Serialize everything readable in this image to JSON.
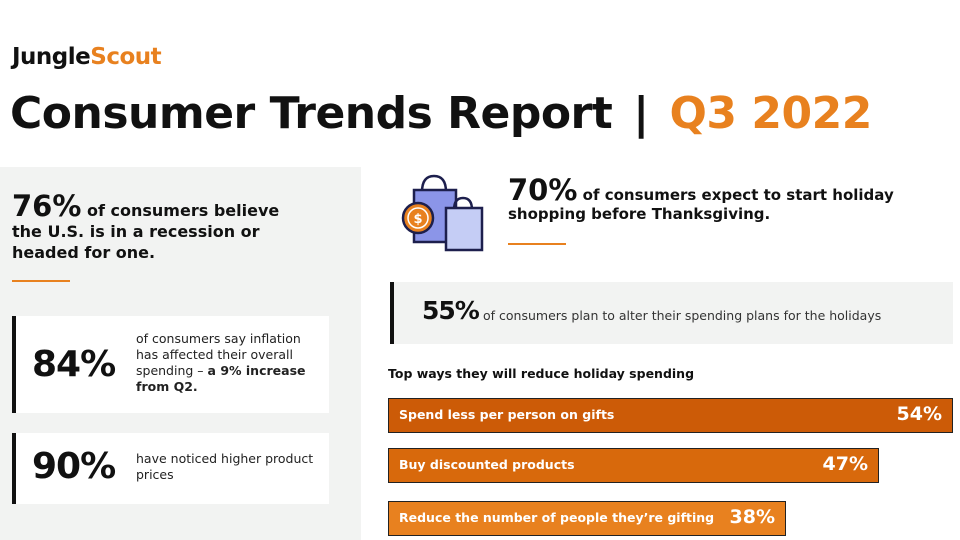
{
  "brand": {
    "part1": "Jungle",
    "part2": "Scout"
  },
  "header": {
    "title_main": "Consumer Trends Report",
    "title_separator": "|",
    "title_period": "Q3 2022"
  },
  "colors": {
    "accent": "#e8811f",
    "dark_orange": "#cc5b07",
    "panel_gray": "#f2f3f2",
    "bag_blue": "#8b95e8"
  },
  "stats": {
    "recession": {
      "percent": "76%",
      "text": "of consumers believe the U.S. is in a recession or headed for one."
    },
    "inflation": {
      "percent": "84%",
      "text": "of consumers say inflation has affected their overall spending – ",
      "highlight": "a 9% increase from Q2."
    },
    "prices": {
      "percent": "90%",
      "text": "have noticed higher product prices"
    },
    "holiday_start": {
      "percent": "70%",
      "text": "of consumers expect to start holiday shopping before Thanksgiving.",
      "icon": "shopping-bags-dollar-icon"
    },
    "alter_plans": {
      "percent": "55%",
      "text": "of consumers plan to alter their spending plans for the holidays"
    }
  },
  "reduce_section": {
    "heading": "Top ways they will reduce holiday spending",
    "items": [
      {
        "label": "Spend less per person on gifts",
        "value": "54%",
        "percent": 54
      },
      {
        "label": "Buy discounted products",
        "value": "47%",
        "percent": 47
      },
      {
        "label": "Reduce the number of people they’re gifting",
        "value": "38%",
        "percent": 38
      }
    ]
  }
}
